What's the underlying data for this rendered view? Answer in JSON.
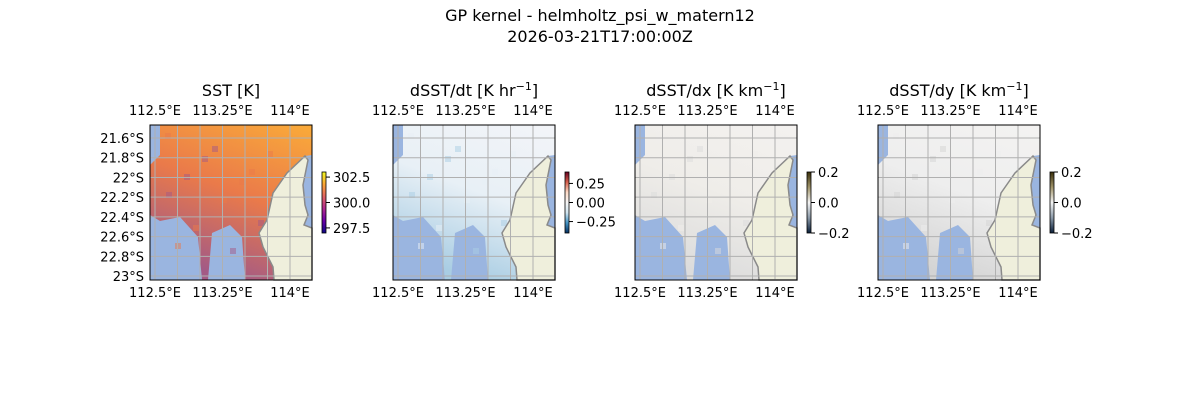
{
  "figure": {
    "title_line1": "GP kernel - helmholtz_psi_w_matern12",
    "title_line2": "2026-03-21T17:00:00Z"
  },
  "colors": {
    "no_data": "#9ab5e0",
    "land": "#efefdc",
    "coast": "#8a8a8a",
    "grid": "#b0b0b0"
  },
  "chart_data": [
    {
      "type": "heatmap",
      "title": "SST [K]",
      "title_exp": "",
      "title_suffix": "",
      "lon_ticks": [
        112.5,
        113.25,
        114
      ],
      "lon_labels": [
        "112.5°E",
        "113.25°E",
        "114°E"
      ],
      "lat_ticks": [
        -21.6,
        -21.8,
        -22,
        -22.2,
        -22.4,
        -22.6,
        -22.8,
        -23
      ],
      "lat_labels": [
        "21.6°S",
        "21.8°S",
        "22°S",
        "22.2°S",
        "22.4°S",
        "22.6°S",
        "22.8°S",
        "23°S"
      ],
      "show_lat_labels": true,
      "colorbar": {
        "range": [
          297,
          303
        ],
        "ticks": [
          302.5,
          300.0,
          297.5
        ],
        "tick_labels": [
          "302.5",
          "300.0",
          "297.5"
        ],
        "colormap": "plasma"
      },
      "field_colors": [
        "#f9a83a",
        "#ea7a4a",
        "#a35a85"
      ]
    },
    {
      "type": "heatmap",
      "title": "dSST/dt [K hr",
      "title_exp": "−1",
      "title_suffix": "]",
      "lon_ticks": [
        112.5,
        113.25,
        114
      ],
      "lon_labels": [
        "112.5°E",
        "113.25°E",
        "114°E"
      ],
      "show_lat_labels": false,
      "colorbar": {
        "range": [
          -0.4,
          0.4
        ],
        "ticks": [
          0.25,
          0.0,
          -0.25
        ],
        "tick_labels": [
          "0.25",
          "0.00",
          "−0.25"
        ],
        "colormap": "RdBu_r"
      },
      "field_colors": [
        "#f2f4f8",
        "#e8f0f6",
        "#a9cde3"
      ]
    },
    {
      "type": "heatmap",
      "title": "dSST/dx [K km",
      "title_exp": "−1",
      "title_suffix": "]",
      "lon_ticks": [
        112.5,
        113.25,
        114
      ],
      "lon_labels": [
        "112.5°E",
        "113.25°E",
        "114°E"
      ],
      "show_lat_labels": false,
      "colorbar": {
        "range": [
          -0.2,
          0.2
        ],
        "ticks": [
          0.2,
          0.0,
          -0.2
        ],
        "tick_labels": [
          "0.2",
          "0.0",
          "−0.2"
        ],
        "colormap": "cividis-diverging"
      },
      "field_colors": [
        "#f3f1ef",
        "#efede9",
        "#dcdcdc"
      ]
    },
    {
      "type": "heatmap",
      "title": "dSST/dy [K km",
      "title_exp": "−1",
      "title_suffix": "]",
      "lon_ticks": [
        112.5,
        113.25,
        114
      ],
      "lon_labels": [
        "112.5°E",
        "113.25°E",
        "114°E"
      ],
      "show_lat_labels": false,
      "colorbar": {
        "range": [
          -0.2,
          0.2
        ],
        "ticks": [
          0.2,
          0.0,
          -0.2
        ],
        "tick_labels": [
          "0.2",
          "0.0",
          "−0.2"
        ],
        "colormap": "cividis-diverging"
      },
      "field_colors": [
        "#f3f2f1",
        "#eeeeee",
        "#d4d4d4"
      ]
    }
  ]
}
